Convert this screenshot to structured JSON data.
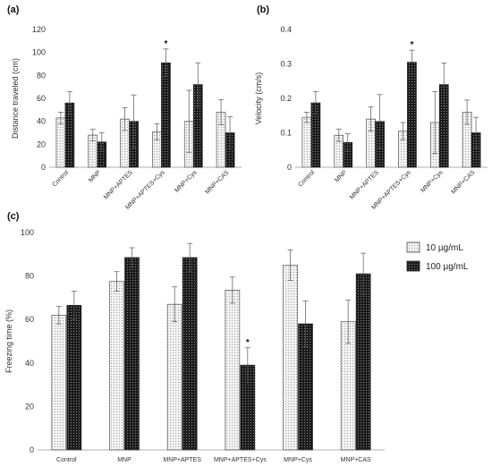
{
  "figure": {
    "legend": [
      {
        "label": "10 µg/mL",
        "pattern": "light-dots"
      },
      {
        "label": "100 µg/mL",
        "pattern": "dark-dots"
      }
    ],
    "significance_marker": "*"
  },
  "chart_data": [
    {
      "panel": "(a)",
      "type": "bar",
      "ylabel": "Distance traveled (cm)",
      "ylim": [
        0,
        120
      ],
      "yticks": [
        0,
        20,
        40,
        60,
        80,
        100,
        120
      ],
      "categories": [
        "Control",
        "MNP",
        "MNP+APTES",
        "MNP+APTES+Cys",
        "MNP+Cys",
        "MNP+CAS"
      ],
      "series": [
        {
          "name": "10 µg/mL",
          "values": [
            43,
            28,
            42,
            31,
            40,
            48
          ],
          "errors": [
            5,
            5,
            10,
            7,
            27,
            11
          ]
        },
        {
          "name": "100 µg/mL",
          "values": [
            56,
            22,
            40,
            91,
            72,
            30
          ],
          "errors": [
            10,
            8,
            23,
            12,
            19,
            14
          ]
        }
      ],
      "significance": [
        {
          "category": "MNP+APTES+Cys",
          "series": 1,
          "mark": "*"
        }
      ]
    },
    {
      "panel": "(b)",
      "type": "bar",
      "ylabel": "Velocity (cm/s)",
      "ylim": [
        0,
        0.4
      ],
      "yticks": [
        "0",
        "0.1",
        "0.2",
        "0.3",
        "0.4"
      ],
      "categories": [
        "Control",
        "MNP",
        "MNP+APTES",
        "MNP+APTES+Cys",
        "MNP+Cys",
        "MNP+CAS"
      ],
      "series": [
        {
          "name": "10 µg/mL",
          "values": [
            0.145,
            0.093,
            0.14,
            0.105,
            0.13,
            0.16
          ],
          "errors": [
            0.015,
            0.018,
            0.035,
            0.025,
            0.09,
            0.035
          ]
        },
        {
          "name": "100 µg/mL",
          "values": [
            0.187,
            0.072,
            0.133,
            0.305,
            0.24,
            0.1
          ],
          "errors": [
            0.033,
            0.025,
            0.078,
            0.035,
            0.063,
            0.045
          ]
        }
      ],
      "significance": [
        {
          "category": "MNP+APTES+Cys",
          "series": 1,
          "mark": "*"
        }
      ]
    },
    {
      "panel": "(c)",
      "type": "bar",
      "ylabel": "Freezing time (%)",
      "ylim": [
        0,
        100
      ],
      "yticks": [
        0,
        20,
        40,
        60,
        80,
        100
      ],
      "categories": [
        "Control",
        "MNP",
        "MNP+APTES",
        "MNP+APTES+Cys",
        "MNP+Cys",
        "MNP+CAS"
      ],
      "series": [
        {
          "name": "10 µg/mL",
          "values": [
            62,
            77.5,
            67,
            73.5,
            85,
            59
          ],
          "errors": [
            4,
            4.5,
            8,
            6,
            7,
            10
          ]
        },
        {
          "name": "100 µg/mL",
          "values": [
            66.5,
            88.5,
            88.5,
            39,
            58,
            81
          ],
          "errors": [
            6.5,
            4.5,
            6.5,
            8,
            10.5,
            9.5
          ]
        }
      ],
      "significance": [
        {
          "category": "MNP+APTES+Cys",
          "series": 1,
          "mark": "*"
        }
      ]
    }
  ]
}
